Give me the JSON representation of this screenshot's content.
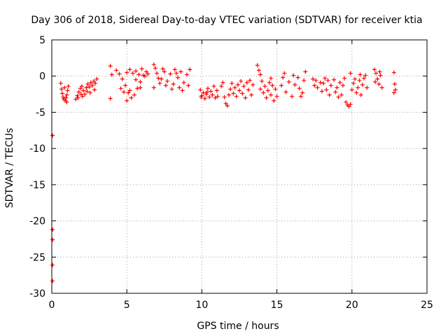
{
  "chart_data": {
    "type": "scatter",
    "title": "Day 306 of 2018, Sidereal Day-to-day VTEC variation (SDTVAR) for receiver ktia",
    "xlabel": "GPS time / hours",
    "ylabel": "SDTVAR / TECUs",
    "xlim": [
      0,
      25
    ],
    "ylim": [
      -30,
      5
    ],
    "xticks": [
      0,
      5,
      10,
      15,
      20,
      25
    ],
    "yticks": [
      5,
      0,
      -5,
      -10,
      -15,
      -20,
      -25,
      -30
    ],
    "grid": true,
    "marker": "+",
    "series": [
      {
        "name": "SDTVAR",
        "color": "#ff0000",
        "points": [
          [
            0.05,
            -8.2
          ],
          [
            0.05,
            -21.2
          ],
          [
            0.05,
            -22.6
          ],
          [
            0.05,
            -26.1
          ],
          [
            0.05,
            -28.3
          ],
          [
            0.6,
            -1.0
          ],
          [
            0.65,
            -1.8
          ],
          [
            0.7,
            -2.4
          ],
          [
            0.75,
            -2.9
          ],
          [
            0.8,
            -3.2
          ],
          [
            0.9,
            -3.4
          ],
          [
            1.0,
            -2.6
          ],
          [
            1.05,
            -2.0
          ],
          [
            1.1,
            -1.4
          ],
          [
            0.95,
            -3.0
          ],
          [
            0.85,
            -1.6
          ],
          [
            1.0,
            -3.6
          ],
          [
            1.6,
            -3.2
          ],
          [
            1.7,
            -2.7
          ],
          [
            1.8,
            -2.2
          ],
          [
            1.9,
            -1.7
          ],
          [
            2.0,
            -1.4
          ],
          [
            2.1,
            -2.0
          ],
          [
            2.2,
            -2.5
          ],
          [
            2.3,
            -1.6
          ],
          [
            2.4,
            -1.1
          ],
          [
            2.5,
            -1.5
          ],
          [
            2.6,
            -0.9
          ],
          [
            2.7,
            -1.3
          ],
          [
            2.8,
            -0.7
          ],
          [
            2.9,
            -1.0
          ],
          [
            3.0,
            -0.4
          ],
          [
            1.75,
            -3.0
          ],
          [
            2.05,
            -2.8
          ],
          [
            2.35,
            -2.1
          ],
          [
            2.55,
            -2.3
          ],
          [
            2.85,
            -1.9
          ],
          [
            1.95,
            -2.5
          ],
          [
            3.9,
            1.4
          ],
          [
            3.9,
            -3.1
          ],
          [
            4.0,
            0.2
          ],
          [
            4.3,
            0.8
          ],
          [
            4.5,
            0.3
          ],
          [
            4.7,
            -0.4
          ],
          [
            4.9,
            -1.3
          ],
          [
            5.1,
            -2.3
          ],
          [
            5.3,
            -3.0
          ],
          [
            5.5,
            -2.6
          ],
          [
            5.7,
            -1.7
          ],
          [
            5.9,
            -0.8
          ],
          [
            6.1,
            0.1
          ],
          [
            6.3,
            0.6
          ],
          [
            5.0,
            0.5
          ],
          [
            5.2,
            0.9
          ],
          [
            5.4,
            0.4
          ],
          [
            5.6,
            0.7
          ],
          [
            5.8,
            0.2
          ],
          [
            6.0,
            1.0
          ],
          [
            6.2,
            0.0
          ],
          [
            6.4,
            0.3
          ],
          [
            4.6,
            -1.7
          ],
          [
            4.8,
            -2.2
          ],
          [
            5.0,
            -3.4
          ],
          [
            5.2,
            -2.0
          ],
          [
            5.6,
            -0.5
          ],
          [
            5.9,
            -1.6
          ],
          [
            6.8,
            1.6
          ],
          [
            6.9,
            1.1
          ],
          [
            7.0,
            0.4
          ],
          [
            7.1,
            -0.3
          ],
          [
            7.2,
            -1.0
          ],
          [
            7.3,
            -0.4
          ],
          [
            7.5,
            0.6
          ],
          [
            7.7,
            -0.7
          ],
          [
            7.9,
            0.3
          ],
          [
            8.1,
            -1.1
          ],
          [
            8.2,
            0.9
          ],
          [
            8.4,
            -0.2
          ],
          [
            8.5,
            -1.6
          ],
          [
            8.6,
            0.6
          ],
          [
            8.8,
            -0.9
          ],
          [
            9.0,
            0.2
          ],
          [
            9.1,
            -1.3
          ],
          [
            9.2,
            0.9
          ],
          [
            6.8,
            -1.6
          ],
          [
            7.6,
            -1.3
          ],
          [
            8.0,
            -1.8
          ],
          [
            8.7,
            -2.0
          ],
          [
            7.4,
            1.0
          ],
          [
            8.3,
            0.4
          ],
          [
            9.9,
            -1.9
          ],
          [
            10.0,
            -2.7
          ],
          [
            10.1,
            -2.3
          ],
          [
            10.2,
            -3.1
          ],
          [
            10.3,
            -2.5
          ],
          [
            10.4,
            -1.7
          ],
          [
            10.5,
            -2.9
          ],
          [
            10.6,
            -2.1
          ],
          [
            10.7,
            -2.6
          ],
          [
            10.8,
            -1.4
          ],
          [
            10.9,
            -3.0
          ],
          [
            11.0,
            -2.0
          ],
          [
            11.05,
            -2.8
          ],
          [
            9.95,
            -2.9
          ],
          [
            10.35,
            -2.2
          ],
          [
            11.3,
            -1.4
          ],
          [
            11.4,
            -0.9
          ],
          [
            11.5,
            -2.9
          ],
          [
            11.6,
            -3.8
          ],
          [
            11.7,
            -4.1
          ],
          [
            11.8,
            -2.6
          ],
          [
            11.9,
            -1.8
          ],
          [
            12.0,
            -1.0
          ],
          [
            12.1,
            -2.4
          ],
          [
            12.2,
            -1.6
          ],
          [
            12.3,
            -2.8
          ],
          [
            12.4,
            -1.2
          ],
          [
            12.5,
            -2.0
          ],
          [
            12.6,
            -0.7
          ],
          [
            12.7,
            -2.4
          ],
          [
            12.8,
            -1.4
          ],
          [
            12.9,
            -3.0
          ],
          [
            13.0,
            -0.9
          ],
          [
            13.1,
            -1.9
          ],
          [
            13.2,
            -0.6
          ],
          [
            13.3,
            -2.6
          ],
          [
            13.4,
            -1.2
          ],
          [
            13.7,
            1.5
          ],
          [
            13.8,
            0.8
          ],
          [
            13.9,
            0.2
          ],
          [
            14.0,
            -0.7
          ],
          [
            14.1,
            -2.3
          ],
          [
            14.2,
            -1.4
          ],
          [
            14.3,
            -3.0
          ],
          [
            14.4,
            -2.0
          ],
          [
            14.5,
            -0.9
          ],
          [
            14.6,
            -2.6
          ],
          [
            14.7,
            -1.3
          ],
          [
            14.8,
            -3.4
          ],
          [
            14.9,
            -1.8
          ],
          [
            15.0,
            -2.8
          ],
          [
            13.9,
            -1.8
          ],
          [
            14.6,
            -0.3
          ],
          [
            15.3,
            -1.3
          ],
          [
            15.4,
            -0.2
          ],
          [
            15.6,
            -2.2
          ],
          [
            15.8,
            -0.8
          ],
          [
            16.0,
            -2.8
          ],
          [
            16.2,
            -1.2
          ],
          [
            16.4,
            -0.2
          ],
          [
            16.5,
            -1.7
          ],
          [
            16.7,
            -2.3
          ],
          [
            16.8,
            -0.6
          ],
          [
            16.9,
            0.6
          ],
          [
            15.5,
            0.4
          ],
          [
            16.1,
            0.1
          ],
          [
            16.6,
            -2.8
          ],
          [
            17.4,
            -0.4
          ],
          [
            17.5,
            -1.3
          ],
          [
            17.6,
            -0.6
          ],
          [
            17.7,
            -1.6
          ],
          [
            17.9,
            -0.9
          ],
          [
            18.0,
            -2.1
          ],
          [
            18.1,
            -1.0
          ],
          [
            18.3,
            -1.9
          ],
          [
            18.4,
            -0.6
          ],
          [
            18.5,
            -2.6
          ],
          [
            18.6,
            -1.3
          ],
          [
            18.8,
            -0.5
          ],
          [
            18.9,
            -2.2
          ],
          [
            19.0,
            -1.6
          ],
          [
            19.2,
            -0.9
          ],
          [
            19.3,
            -2.6
          ],
          [
            19.4,
            -1.3
          ],
          [
            19.5,
            -0.3
          ],
          [
            19.6,
            -3.6
          ],
          [
            19.7,
            -4.0
          ],
          [
            19.8,
            -4.2
          ],
          [
            19.9,
            -3.9
          ],
          [
            20.0,
            -1.9
          ],
          [
            20.1,
            -1.0
          ],
          [
            20.2,
            -0.4
          ],
          [
            20.3,
            -2.3
          ],
          [
            20.4,
            -1.6
          ],
          [
            20.5,
            -0.6
          ],
          [
            20.6,
            -2.6
          ],
          [
            20.7,
            -1.2
          ],
          [
            20.8,
            -0.3
          ],
          [
            20.9,
            0.1
          ],
          [
            21.0,
            -1.6
          ],
          [
            18.2,
            -0.3
          ],
          [
            19.1,
            -2.9
          ],
          [
            19.9,
            0.4
          ],
          [
            20.55,
            0.2
          ],
          [
            21.5,
            0.9
          ],
          [
            21.6,
            0.4
          ],
          [
            21.7,
            -0.4
          ],
          [
            21.8,
            -1.1
          ],
          [
            21.9,
            0.1
          ],
          [
            22.0,
            -1.6
          ],
          [
            21.55,
            -0.8
          ],
          [
            21.85,
            0.6
          ],
          [
            22.8,
            0.5
          ],
          [
            22.85,
            -1.1
          ],
          [
            22.9,
            -1.9
          ],
          [
            22.8,
            -2.3
          ]
        ]
      }
    ]
  }
}
